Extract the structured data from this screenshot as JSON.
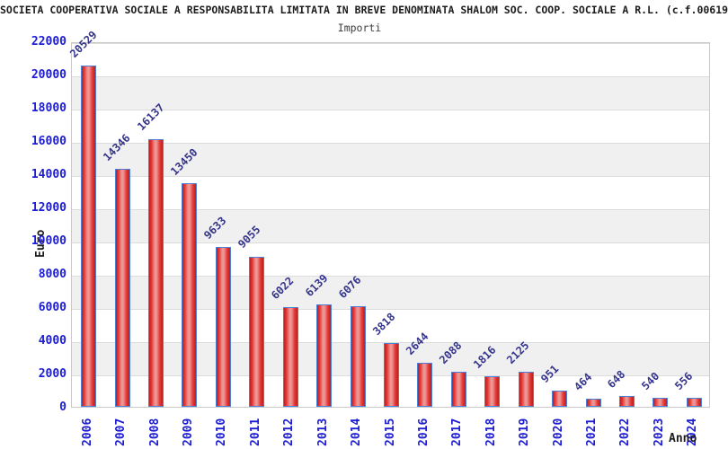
{
  "header": {
    "title": "SOCIETA COOPERATIVA SOCIALE A RESPONSABILITA LIMITATA IN BREVE DENOMINATA SHALOM SOC. COOP. SOCIALE A R.L. (c.f.00619",
    "subtitle": "Importi"
  },
  "chart_data": {
    "type": "bar",
    "title": "Importi",
    "xlabel": "Anno",
    "ylabel": "Euro",
    "categories": [
      "2006",
      "2007",
      "2008",
      "2009",
      "2010",
      "2011",
      "2012",
      "2013",
      "2014",
      "2015",
      "2016",
      "2017",
      "2018",
      "2019",
      "2020",
      "2021",
      "2022",
      "2023",
      "2024"
    ],
    "values": [
      20529,
      14346,
      16137,
      13450,
      9633,
      9055,
      6022,
      6139,
      6076,
      3818,
      2644,
      2088,
      1816,
      2125,
      951,
      464,
      648,
      540,
      556
    ],
    "ylim": [
      0,
      22000
    ],
    "ytick_step": 2000,
    "legend": "none",
    "grid": "horizontal-bands-alternating",
    "colors": {
      "tick_label": "#1c1cd2",
      "value_label": "#34348c",
      "band_gray": "#f0f0f0",
      "band_white": "#ffffff",
      "gridline": "#dcdcdc",
      "plot_border": "#c9c9c9",
      "bar_border": "#4d7fd6",
      "bar_dark": "#b92020",
      "bar_mid": "#e53935",
      "bar_light": "#ee9595",
      "axis_title": "#1c1c1c",
      "title_text": "#1c1c1c"
    }
  }
}
